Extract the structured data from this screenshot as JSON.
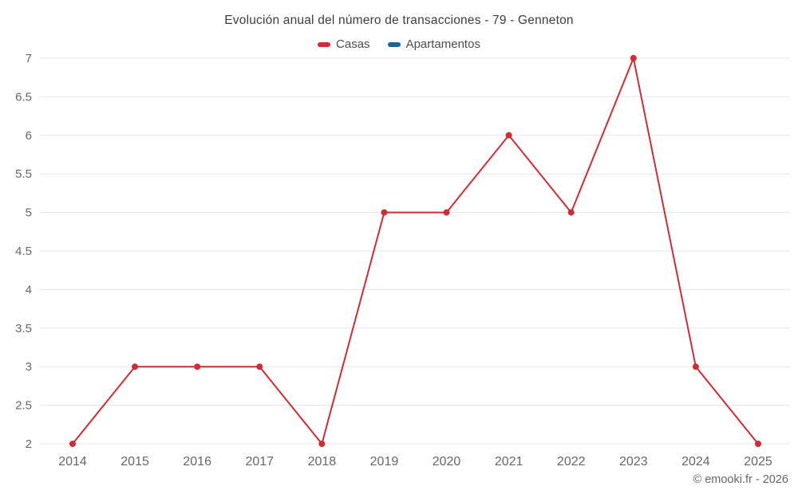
{
  "chart_data": {
    "type": "line",
    "title": "Evolución anual del número de transacciones - 79 - Genneton",
    "categories": [
      "2014",
      "2015",
      "2016",
      "2017",
      "2018",
      "2019",
      "2020",
      "2021",
      "2022",
      "2023",
      "2024",
      "2025"
    ],
    "series": [
      {
        "name": "Casas",
        "color": "#d22b33",
        "values": [
          2,
          3,
          3,
          3,
          2,
          5,
          5,
          6,
          5,
          7,
          3,
          2
        ]
      },
      {
        "name": "Apartamentos",
        "color": "#16699e",
        "values": []
      }
    ],
    "ylim": [
      2,
      7
    ],
    "ytick_step": 0.5,
    "grid": "horizontal",
    "gridline_color": "#e6e6e6",
    "tick_label_color": "#666666",
    "legend_position": "top"
  },
  "footer": {
    "credit": "© emooki.fr - 2026"
  }
}
